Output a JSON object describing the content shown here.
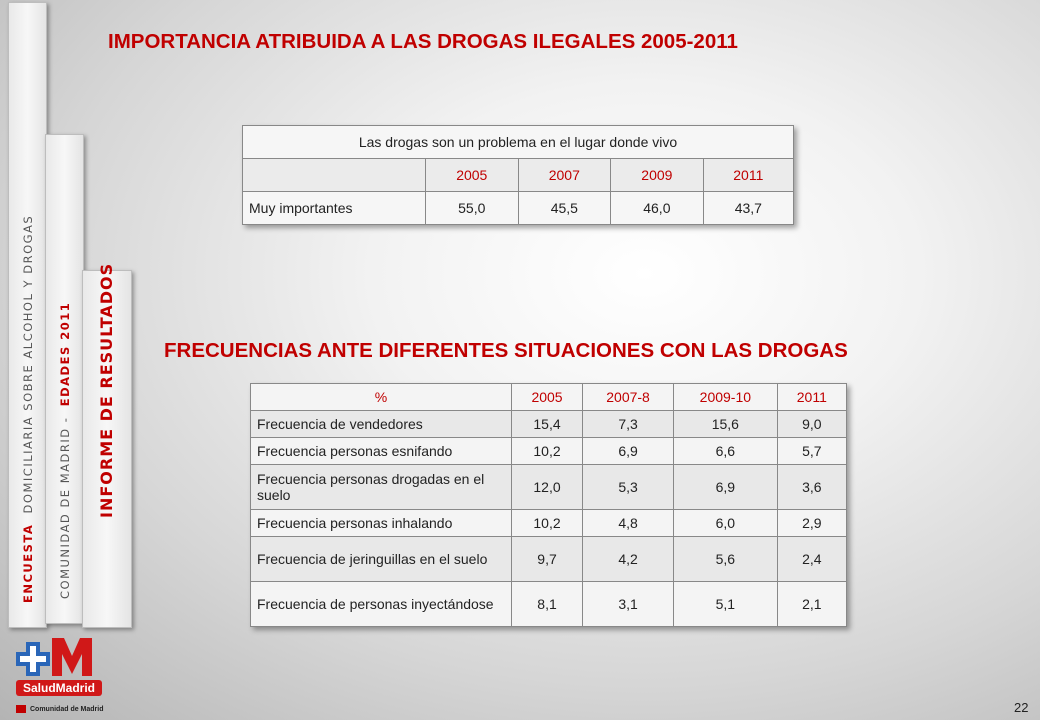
{
  "side_tabs": {
    "tab1": {
      "highlight": "ENCUESTA",
      "rest": "DOMICILIARIA  SOBRE  ALCOHOL  Y  DROGAS"
    },
    "tab2": {
      "rest": "COMUNIDAD  DE  MADRID  -",
      "highlight": "EDADES  2011"
    },
    "tab3": {
      "text": "INFORME  DE  RESULTADOS"
    }
  },
  "title1": "IMPORTANCIA ATRIBUIDA A LAS DROGAS ILEGALES 2005-2011",
  "table1": {
    "caption": "Las drogas son un problema en el lugar donde vivo",
    "years": [
      "2005",
      "2007",
      "2009",
      "2011"
    ],
    "row_label": "Muy importantes",
    "values": [
      "55,0",
      "45,5",
      "46,0",
      "43,7"
    ]
  },
  "title2": "FRECUENCIAS ANTE DIFERENTES SITUACIONES CON LAS DROGAS",
  "table2": {
    "headers": [
      "%",
      "2005",
      "2007-8",
      "2009-10",
      "2011"
    ],
    "rows": [
      {
        "label": "Frecuencia de vendedores",
        "values": [
          "15,4",
          "7,3",
          "15,6",
          "9,0"
        ]
      },
      {
        "label": "Frecuencia personas esnifando",
        "values": [
          "10,2",
          "6,9",
          "6,6",
          "5,7"
        ]
      },
      {
        "label": "Frecuencia personas drogadas en el suelo",
        "values": [
          "12,0",
          "5,3",
          "6,9",
          "3,6"
        ]
      },
      {
        "label": "Frecuencia personas inhalando",
        "values": [
          "10,2",
          "4,8",
          "6,0",
          "2,9"
        ]
      },
      {
        "label": "Frecuencia de jeringuillas en el suelo",
        "values": [
          "9,7",
          "4,2",
          "5,6",
          "2,4"
        ]
      },
      {
        "label": "Frecuencia de personas inyectándose",
        "values": [
          "8,1",
          "3,1",
          "5,1",
          "2,1"
        ]
      }
    ]
  },
  "logo": {
    "brand": "SaludMadrid",
    "org": "Comunidad de Madrid"
  },
  "page_number": "22",
  "colors": {
    "accent": "#c00000",
    "logo_blue": "#2a66b8"
  }
}
